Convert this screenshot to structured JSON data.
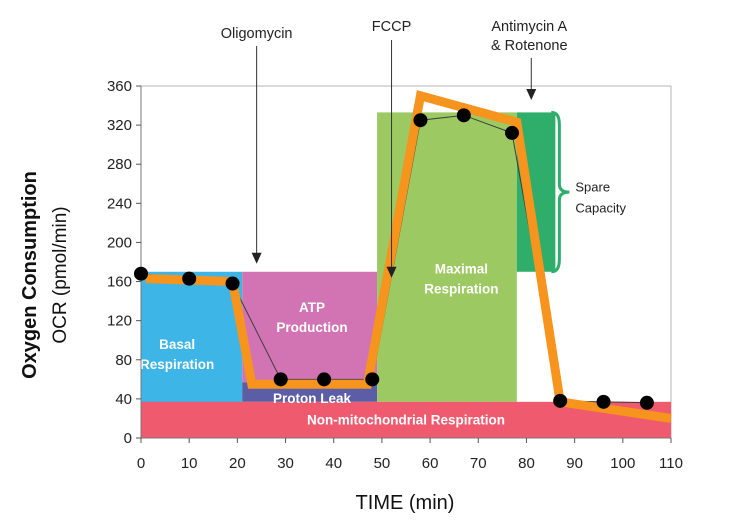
{
  "chart_data": {
    "type": "line",
    "xlabel": "TIME (min)",
    "ylabel_line1": "Oxygen Consumption",
    "ylabel_line2": "OCR (pmol/min)",
    "xlim": [
      0,
      110
    ],
    "ylim": [
      0,
      360
    ],
    "x_ticks": [
      0,
      10,
      20,
      30,
      40,
      50,
      60,
      70,
      80,
      90,
      100,
      110
    ],
    "x_tick_labels": [
      "0",
      "10",
      "20",
      "30",
      "40",
      "50",
      "60",
      "70",
      "80",
      "90",
      "100",
      "110"
    ],
    "y_ticks": [
      0,
      40,
      80,
      120,
      160,
      200,
      240,
      280,
      320,
      360
    ],
    "y_tick_labels": [
      "0",
      "40",
      "80",
      "120",
      "160",
      "200",
      "240",
      "280",
      "320",
      "360"
    ],
    "grid": false,
    "series": [
      {
        "color": "#3d3d3d",
        "x": [
          0,
          10,
          19,
          29,
          38,
          48,
          58,
          67,
          77,
          87,
          96,
          105
        ],
        "y": [
          168,
          163,
          158,
          60,
          60,
          60,
          325,
          330,
          312,
          38,
          37,
          36
        ]
      },
      {
        "color": "#f7941d",
        "x": [
          1,
          19,
          23,
          47,
          58,
          78,
          87,
          110
        ],
        "y": [
          163,
          160,
          55,
          55,
          350,
          323,
          37,
          20
        ]
      }
    ],
    "injections": [
      {
        "label": "Oligomycin",
        "x": 24
      },
      {
        "label": "FCCP",
        "x": 52
      },
      {
        "label": "Antimycin A & Rotenone",
        "label_line1": "Antimycin A",
        "label_line2": "& Rotenone",
        "x": 81
      }
    ],
    "regions": [
      {
        "label_line1": "Basal",
        "label_line2": "Respiration",
        "x0": 0,
        "x1": 21,
        "y0": 0,
        "y1": 170,
        "color": "#3db5e6"
      },
      {
        "label_line1": "ATP",
        "label_line2": "Production",
        "x0": 21,
        "x1": 49,
        "y0": 57,
        "y1": 170,
        "color": "#d274b4"
      },
      {
        "label_line1": "Proton Leak",
        "label_line2": "",
        "x0": 21,
        "x1": 49,
        "y0": 37,
        "y1": 57,
        "color": "#5b5ea6"
      },
      {
        "label_line1": "Maximal",
        "label_line2": "Respiration",
        "x0": 49,
        "x1": 78,
        "y0": 37,
        "y1": 333,
        "color": "#9cc961"
      },
      {
        "label_line1": "Spare",
        "label_line2": "Capacity",
        "x0": 78,
        "x1": 86,
        "y0": 170,
        "y1": 333,
        "color": "#2eae6a"
      },
      {
        "label_line1": "Non-mitochondrial Respiration",
        "label_line2": "",
        "x0": 0,
        "x1": 110,
        "y0": 0,
        "y1": 37,
        "color": "#ef5a6e"
      }
    ]
  }
}
